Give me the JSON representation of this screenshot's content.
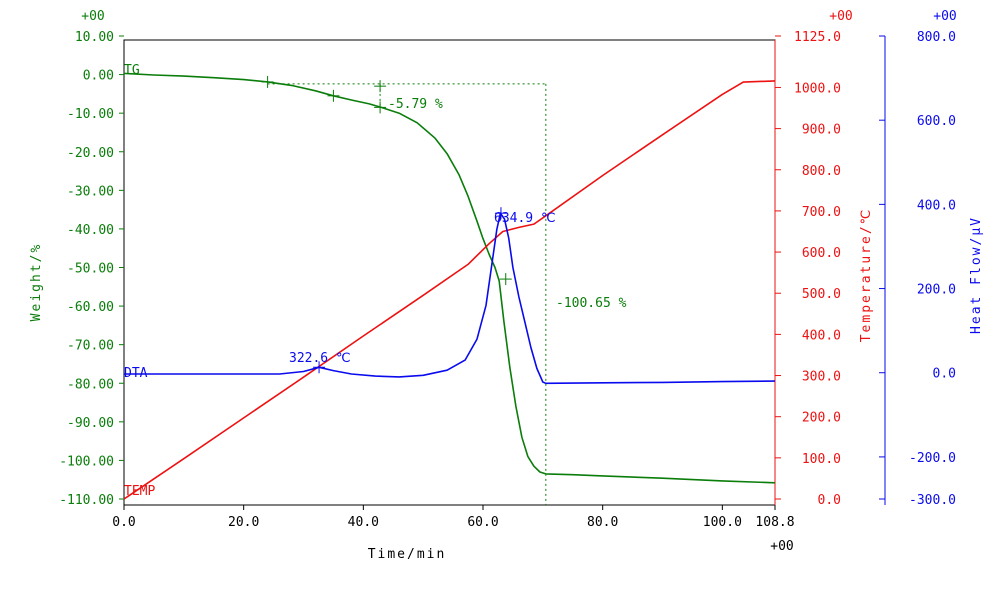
{
  "colors": {
    "tg": "#0a7d0a",
    "temp": "#ee1111",
    "dta": "#0a0aee",
    "frame": "#000000"
  },
  "exponents": {
    "tg": "+00",
    "temp": "+00",
    "dta": "+00",
    "time": "+00"
  },
  "chart_data": {
    "type": "line",
    "xlabel": "Time/min",
    "xlim": [
      0,
      108.8
    ],
    "x_ticks": [
      {
        "v": 0,
        "label": "0.0"
      },
      {
        "v": 20,
        "label": "20.0"
      },
      {
        "v": 40,
        "label": "40.0"
      },
      {
        "v": 60,
        "label": "60.0"
      },
      {
        "v": 80,
        "label": "80.0"
      },
      {
        "v": 100,
        "label": "100.0"
      },
      {
        "v": 108.8,
        "label": "108.8"
      }
    ],
    "axes": {
      "weight": {
        "label": "Weight/%",
        "ylim": [
          -110,
          10
        ],
        "ticks": [
          {
            "v": 10,
            "label": "10.00"
          },
          {
            "v": 0,
            "label": "0.00"
          },
          {
            "v": -10,
            "label": "-10.00"
          },
          {
            "v": -20,
            "label": "-20.00"
          },
          {
            "v": -30,
            "label": "-30.00"
          },
          {
            "v": -40,
            "label": "-40.00"
          },
          {
            "v": -50,
            "label": "-50.00"
          },
          {
            "v": -60,
            "label": "-60.00"
          },
          {
            "v": -70,
            "label": "-70.00"
          },
          {
            "v": -80,
            "label": "-80.00"
          },
          {
            "v": -90,
            "label": "-90.00"
          },
          {
            "v": -100,
            "label": "-100.00"
          },
          {
            "v": -110,
            "label": "-110.00"
          }
        ]
      },
      "temperature": {
        "label": "Temperature/℃",
        "ylim": [
          0,
          1125
        ],
        "ticks": [
          {
            "v": 1125,
            "label": "1125.0"
          },
          {
            "v": 1000,
            "label": "1000.0"
          },
          {
            "v": 900,
            "label": "900.0"
          },
          {
            "v": 800,
            "label": "800.0"
          },
          {
            "v": 700,
            "label": "700.0"
          },
          {
            "v": 600,
            "label": "600.0"
          },
          {
            "v": 500,
            "label": "500.0"
          },
          {
            "v": 400,
            "label": "400.0"
          },
          {
            "v": 300,
            "label": "300.0"
          },
          {
            "v": 200,
            "label": "200.0"
          },
          {
            "v": 100,
            "label": "100.0"
          },
          {
            "v": 0,
            "label": "0.0"
          }
        ]
      },
      "heat_flow": {
        "label": "Heat Flow/μV",
        "ylim": [
          -300,
          800
        ],
        "ticks": [
          {
            "v": 800,
            "label": "800.0"
          },
          {
            "v": 600,
            "label": "600.0"
          },
          {
            "v": 400,
            "label": "400.0"
          },
          {
            "v": 200,
            "label": "200.0"
          },
          {
            "v": 0,
            "label": "0.0"
          },
          {
            "v": -200,
            "label": "-200.0"
          },
          {
            "v": -300,
            "label": "-300.0"
          }
        ]
      }
    },
    "series": [
      {
        "name": "TG",
        "axis": "weight",
        "x": [
          0,
          5,
          10,
          15,
          20,
          24,
          28,
          32,
          35,
          38,
          41,
          43,
          46,
          49,
          52,
          54,
          56,
          57.5,
          59,
          60,
          61,
          62,
          62.7,
          63.5,
          64.5,
          65.5,
          66.5,
          67.5,
          68.5,
          69.5,
          70.5,
          75,
          80,
          90,
          100,
          108.8
        ],
        "y": [
          0.3,
          -0.1,
          -0.4,
          -0.8,
          -1.3,
          -1.9,
          -2.8,
          -4.2,
          -5.5,
          -6.6,
          -7.6,
          -8.5,
          -10,
          -12.5,
          -16.5,
          -20.5,
          -26,
          -31.5,
          -38,
          -42.5,
          -46.5,
          -50,
          -53.5,
          -64,
          -76,
          -86,
          -94,
          -99,
          -101.5,
          -103,
          -103.5,
          -103.7,
          -104,
          -104.6,
          -105.3,
          -105.8
        ]
      },
      {
        "name": "TEMP",
        "axis": "temperature",
        "x": [
          0,
          10,
          20,
          30,
          40,
          50,
          57.5,
          61,
          63.3,
          66,
          68.5,
          70.5,
          80,
          90,
          100,
          103.5,
          108.8
        ],
        "y": [
          0,
          98,
          197,
          296,
          396,
          495,
          570,
          620,
          650,
          660,
          668,
          688,
          786,
          885,
          983,
          1013,
          1016
        ]
      },
      {
        "name": "DTA",
        "axis": "heat_flow",
        "x": [
          0,
          10,
          20,
          26,
          30,
          32.6,
          35,
          38,
          42,
          46,
          50,
          54,
          57,
          59,
          60.5,
          61.5,
          62.3,
          62.9,
          63.6,
          64.3,
          65,
          66,
          67,
          68,
          69,
          70,
          70.5,
          80,
          90,
          100,
          108.8
        ],
        "y": [
          -3,
          -3,
          -3,
          -3,
          3,
          13,
          5,
          -3,
          -8,
          -10,
          -6,
          6,
          30,
          80,
          160,
          260,
          340,
          379,
          365,
          320,
          250,
          180,
          120,
          60,
          10,
          -22,
          -25,
          -24,
          -23,
          -21,
          -20
        ]
      }
    ],
    "markers": [
      {
        "series": "TG",
        "x": 24,
        "y": -1.9
      },
      {
        "series": "TG",
        "x": 35,
        "y": -5.5
      },
      {
        "series": "TG",
        "x": 42.8,
        "y": -8.5
      },
      {
        "series": "TG",
        "x": 42.8,
        "y": -3
      },
      {
        "series": "TG",
        "x": 63.8,
        "y": -53
      },
      {
        "series": "DTA",
        "x": 32.6,
        "y": 13
      },
      {
        "series": "DTA",
        "x": 63,
        "y": 379
      }
    ],
    "annotations": {
      "tg_label": "TG",
      "dta_label": "DTA",
      "temp_label": "TEMP",
      "dta_peak1": "322.6 ℃",
      "dta_peak2": "634.9 ℃",
      "tg_step1": "-5.79 %",
      "tg_step2": "-100.65 %"
    }
  }
}
